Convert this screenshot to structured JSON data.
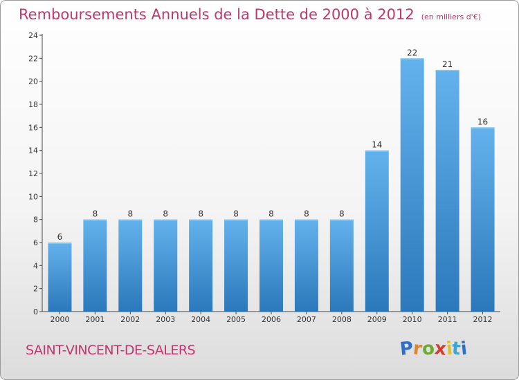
{
  "header": {
    "title": "Remboursements Annuels de la Dette de 2000 à 2012",
    "subtitle": "(en milliers d'€)"
  },
  "footer": {
    "place": "SAINT-VINCENT-DE-SALERS",
    "logo": {
      "letters": [
        "P",
        "r",
        "o",
        "x",
        "i",
        "t",
        "i"
      ],
      "colors": [
        "#2f6fc6",
        "#e0832a",
        "#6cab2e",
        "#d63b2f",
        "#e0c12a",
        "#3aa6d8",
        "#2f6fc6"
      ]
    }
  },
  "colors": {
    "bar_top": "#64b2ec",
    "bar_bottom": "#2b78bb",
    "title": "#c0366e"
  },
  "chart_data": {
    "type": "bar",
    "categories": [
      "2000",
      "2001",
      "2002",
      "2003",
      "2004",
      "2005",
      "2006",
      "2007",
      "2008",
      "2009",
      "2010",
      "2011",
      "2012"
    ],
    "values": [
      6,
      8,
      8,
      8,
      8,
      8,
      8,
      8,
      8,
      14,
      22,
      21,
      16
    ],
    "title": "Remboursements Annuels de la Dette de 2000 à 2012",
    "ylim": [
      0,
      24
    ],
    "yticks": [
      0,
      2,
      4,
      6,
      8,
      10,
      12,
      14,
      16,
      18,
      20,
      22,
      24
    ],
    "grid": false,
    "legend": "none"
  }
}
